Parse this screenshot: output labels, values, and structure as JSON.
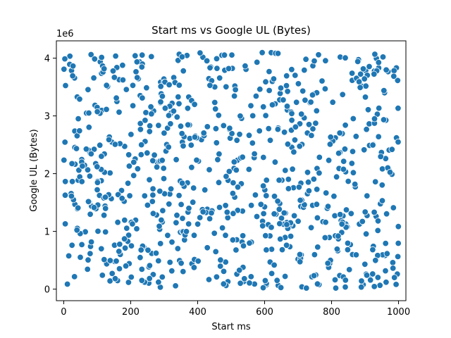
{
  "chart_data": {
    "type": "scatter",
    "title": "Start ms vs Google UL (Bytes)",
    "xlabel": "Start ms",
    "ylabel": "Google UL (Bytes)",
    "y_offset_text": "1e6",
    "xlim": [
      -22,
      1022
    ],
    "ylim": [
      -200000,
      4300000
    ],
    "x_ticks": [
      0,
      200,
      400,
      600,
      800,
      1000
    ],
    "x_tick_labels": [
      "0",
      "200",
      "400",
      "600",
      "800",
      "1000"
    ],
    "y_ticks": [
      0,
      1000000,
      2000000,
      3000000,
      4000000
    ],
    "y_tick_labels": [
      "0",
      "1",
      "2",
      "3",
      "4"
    ],
    "grid": false,
    "marker_color": "#1f77b4",
    "point_count": 800,
    "x_range": [
      0,
      1000
    ],
    "y_range": [
      0,
      4100000
    ]
  }
}
